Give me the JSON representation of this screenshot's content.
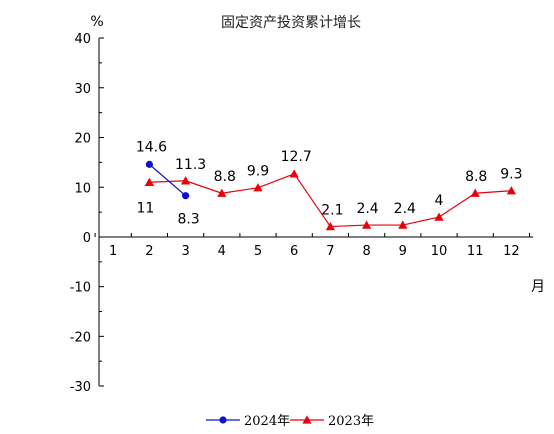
{
  "chart_data": {
    "type": "line",
    "title": "固定资产投资累计增长",
    "ylabel": "%",
    "xlabel": "月",
    "ylim": [
      -30,
      40
    ],
    "yticks": [
      -30,
      -20,
      -10,
      0,
      10,
      20,
      30,
      40
    ],
    "xticks": [
      1,
      2,
      3,
      4,
      5,
      6,
      7,
      8,
      9,
      10,
      11,
      12
    ],
    "grid": false,
    "legend_position": "bottom",
    "series": [
      {
        "name": "2024年",
        "color": "#1010d0",
        "marker": "circle",
        "x": [
          2,
          3
        ],
        "values": [
          14.6,
          8.3
        ],
        "labels": [
          "14.6",
          "8.3"
        ]
      },
      {
        "name": "2023年",
        "color": "#e8000b",
        "marker": "triangle",
        "x": [
          2,
          3,
          4,
          5,
          6,
          7,
          8,
          9,
          10,
          11,
          12
        ],
        "values": [
          11,
          11.3,
          8.8,
          9.9,
          12.7,
          2.1,
          2.4,
          2.4,
          4,
          8.8,
          9.3
        ],
        "labels": [
          "11",
          "11.3",
          "8.8",
          "9.9",
          "12.7",
          "2.1",
          "2.4",
          "2.4",
          "4",
          "8.8",
          "9.3"
        ]
      }
    ]
  }
}
